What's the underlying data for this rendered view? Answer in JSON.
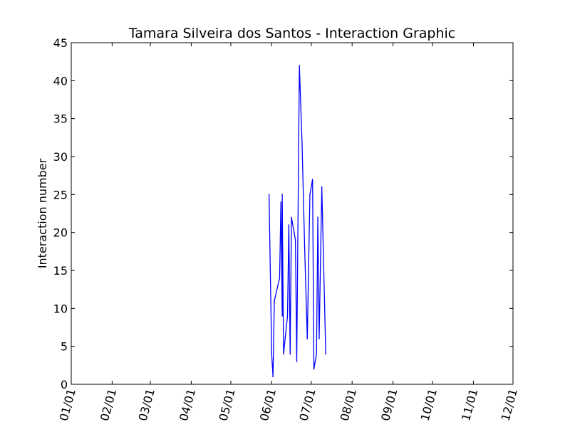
{
  "chart_data": {
    "type": "line",
    "title": "Tamara Silveira dos Santos - Interaction Graphic",
    "xlabel": "",
    "ylabel": "Interaction number",
    "xlim": [
      "2000-01-01",
      "2000-12-01"
    ],
    "ylim": [
      0,
      45
    ],
    "x_ticks": [
      "2000-01-01",
      "2000-02-01",
      "2000-03-01",
      "2000-04-01",
      "2000-05-01",
      "2000-06-01",
      "2000-07-01",
      "2000-08-01",
      "2000-09-01",
      "2000-10-01",
      "2000-11-01",
      "2000-12-01"
    ],
    "x_tick_labels": [
      "01/01",
      "02/01",
      "03/01",
      "04/01",
      "05/01",
      "06/01",
      "07/01",
      "08/01",
      "09/01",
      "10/01",
      "11/01",
      "12/01"
    ],
    "y_ticks": [
      0,
      5,
      10,
      15,
      20,
      25,
      30,
      35,
      40,
      45
    ],
    "y_tick_labels": [
      "0",
      "5",
      "10",
      "15",
      "20",
      "25",
      "30",
      "35",
      "40",
      "45"
    ],
    "grid": false,
    "legend": "none",
    "series": [
      {
        "color": "#0000ff",
        "points": [
          {
            "x": "2000-05-30",
            "y": 25
          },
          {
            "x": "2000-06-01",
            "y": 4
          },
          {
            "x": "2000-06-02",
            "y": 1
          },
          {
            "x": "2000-06-03",
            "y": 11
          },
          {
            "x": "2000-06-07",
            "y": 14
          },
          {
            "x": "2000-06-08",
            "y": 24
          },
          {
            "x": "2000-06-09",
            "y": 9
          },
          {
            "x": "2000-06-09",
            "y": 25
          },
          {
            "x": "2000-06-10",
            "y": 4
          },
          {
            "x": "2000-06-13",
            "y": 9
          },
          {
            "x": "2000-06-14",
            "y": 21
          },
          {
            "x": "2000-06-15",
            "y": 4
          },
          {
            "x": "2000-06-16",
            "y": 22
          },
          {
            "x": "2000-06-19",
            "y": 19
          },
          {
            "x": "2000-06-20",
            "y": 3
          },
          {
            "x": "2000-06-22",
            "y": 42
          },
          {
            "x": "2000-06-24",
            "y": 32
          },
          {
            "x": "2000-06-26",
            "y": 18
          },
          {
            "x": "2000-06-28",
            "y": 6
          },
          {
            "x": "2000-06-30",
            "y": 25
          },
          {
            "x": "2000-07-02",
            "y": 27
          },
          {
            "x": "2000-07-03",
            "y": 2
          },
          {
            "x": "2000-07-05",
            "y": 4
          },
          {
            "x": "2000-07-06",
            "y": 22
          },
          {
            "x": "2000-07-07",
            "y": 6
          },
          {
            "x": "2000-07-09",
            "y": 26
          },
          {
            "x": "2000-07-12",
            "y": 4
          }
        ]
      }
    ]
  }
}
